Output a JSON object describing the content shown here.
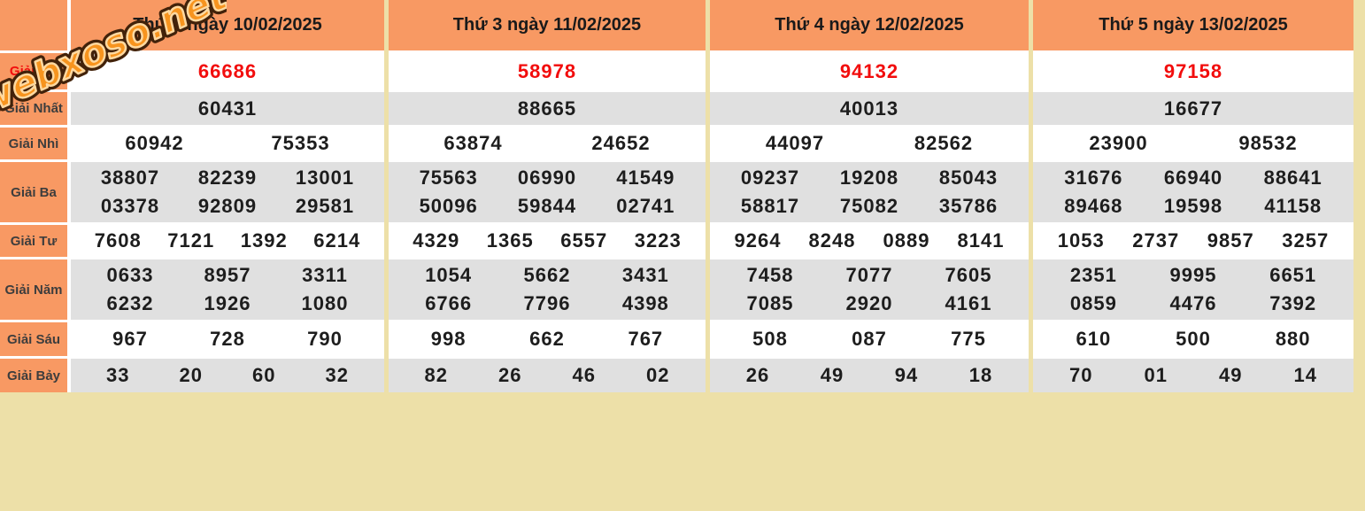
{
  "watermark": {
    "text": "webxoso.net"
  },
  "colors": {
    "page_bg": "#EDE0A8",
    "header_bg": "#F89963",
    "label_bg": "#F89963",
    "row_white": "#FFFFFF",
    "row_gray": "#E0E0E0",
    "special_red": "#F20D0D",
    "number_text": "#1D1D1D",
    "watermark_fill": "#F7941E",
    "watermark_outline": "#42220A"
  },
  "prize_rows": [
    {
      "id": "giai-db",
      "label": "Giải ĐB",
      "label_red": true,
      "special": true
    },
    {
      "id": "giai-nhat",
      "label": "Giải Nhất",
      "label_red": false,
      "special": false
    },
    {
      "id": "giai-nhi",
      "label": "Giải Nhì",
      "label_red": false,
      "special": false
    },
    {
      "id": "giai-ba",
      "label": "Giải Ba",
      "label_red": false,
      "special": false
    },
    {
      "id": "giai-tu",
      "label": "Giải Tư",
      "label_red": false,
      "special": false
    },
    {
      "id": "giai-nam",
      "label": "Giải Năm",
      "label_red": false,
      "special": false
    },
    {
      "id": "giai-sau",
      "label": "Giải Sáu",
      "label_red": false,
      "special": false
    },
    {
      "id": "giai-bay",
      "label": "Giải Bảy",
      "label_red": false,
      "special": false
    }
  ],
  "columns": [
    {
      "header": "Thứ 2 ngày 10/02/2025",
      "results": {
        "giai-db": [
          [
            "66686"
          ]
        ],
        "giai-nhat": [
          [
            "60431"
          ]
        ],
        "giai-nhi": [
          [
            "60942",
            "75353"
          ]
        ],
        "giai-ba": [
          [
            "38807",
            "82239",
            "13001"
          ],
          [
            "03378",
            "92809",
            "29581"
          ]
        ],
        "giai-tu": [
          [
            "7608",
            "7121",
            "1392",
            "6214"
          ]
        ],
        "giai-nam": [
          [
            "0633",
            "8957",
            "3311"
          ],
          [
            "6232",
            "1926",
            "1080"
          ]
        ],
        "giai-sau": [
          [
            "967",
            "728",
            "790"
          ]
        ],
        "giai-bay": [
          [
            "33",
            "20",
            "60",
            "32"
          ]
        ]
      }
    },
    {
      "header": "Thứ 3 ngày 11/02/2025",
      "results": {
        "giai-db": [
          [
            "58978"
          ]
        ],
        "giai-nhat": [
          [
            "88665"
          ]
        ],
        "giai-nhi": [
          [
            "63874",
            "24652"
          ]
        ],
        "giai-ba": [
          [
            "75563",
            "06990",
            "41549"
          ],
          [
            "50096",
            "59844",
            "02741"
          ]
        ],
        "giai-tu": [
          [
            "4329",
            "1365",
            "6557",
            "3223"
          ]
        ],
        "giai-nam": [
          [
            "1054",
            "5662",
            "3431"
          ],
          [
            "6766",
            "7796",
            "4398"
          ]
        ],
        "giai-sau": [
          [
            "998",
            "662",
            "767"
          ]
        ],
        "giai-bay": [
          [
            "82",
            "26",
            "46",
            "02"
          ]
        ]
      }
    },
    {
      "header": "Thứ 4 ngày 12/02/2025",
      "results": {
        "giai-db": [
          [
            "94132"
          ]
        ],
        "giai-nhat": [
          [
            "40013"
          ]
        ],
        "giai-nhi": [
          [
            "44097",
            "82562"
          ]
        ],
        "giai-ba": [
          [
            "09237",
            "19208",
            "85043"
          ],
          [
            "58817",
            "75082",
            "35786"
          ]
        ],
        "giai-tu": [
          [
            "9264",
            "8248",
            "0889",
            "8141"
          ]
        ],
        "giai-nam": [
          [
            "7458",
            "7077",
            "7605"
          ],
          [
            "7085",
            "2920",
            "4161"
          ]
        ],
        "giai-sau": [
          [
            "508",
            "087",
            "775"
          ]
        ],
        "giai-bay": [
          [
            "26",
            "49",
            "94",
            "18"
          ]
        ]
      }
    },
    {
      "header": "Thứ 5 ngày 13/02/2025",
      "results": {
        "giai-db": [
          [
            "97158"
          ]
        ],
        "giai-nhat": [
          [
            "16677"
          ]
        ],
        "giai-nhi": [
          [
            "23900",
            "98532"
          ]
        ],
        "giai-ba": [
          [
            "31676",
            "66940",
            "88641"
          ],
          [
            "89468",
            "19598",
            "41158"
          ]
        ],
        "giai-tu": [
          [
            "1053",
            "2737",
            "9857",
            "3257"
          ]
        ],
        "giai-nam": [
          [
            "2351",
            "9995",
            "6651"
          ],
          [
            "0859",
            "4476",
            "7392"
          ]
        ],
        "giai-sau": [
          [
            "610",
            "500",
            "880"
          ]
        ],
        "giai-bay": [
          [
            "70",
            "01",
            "49",
            "14"
          ]
        ]
      }
    }
  ]
}
